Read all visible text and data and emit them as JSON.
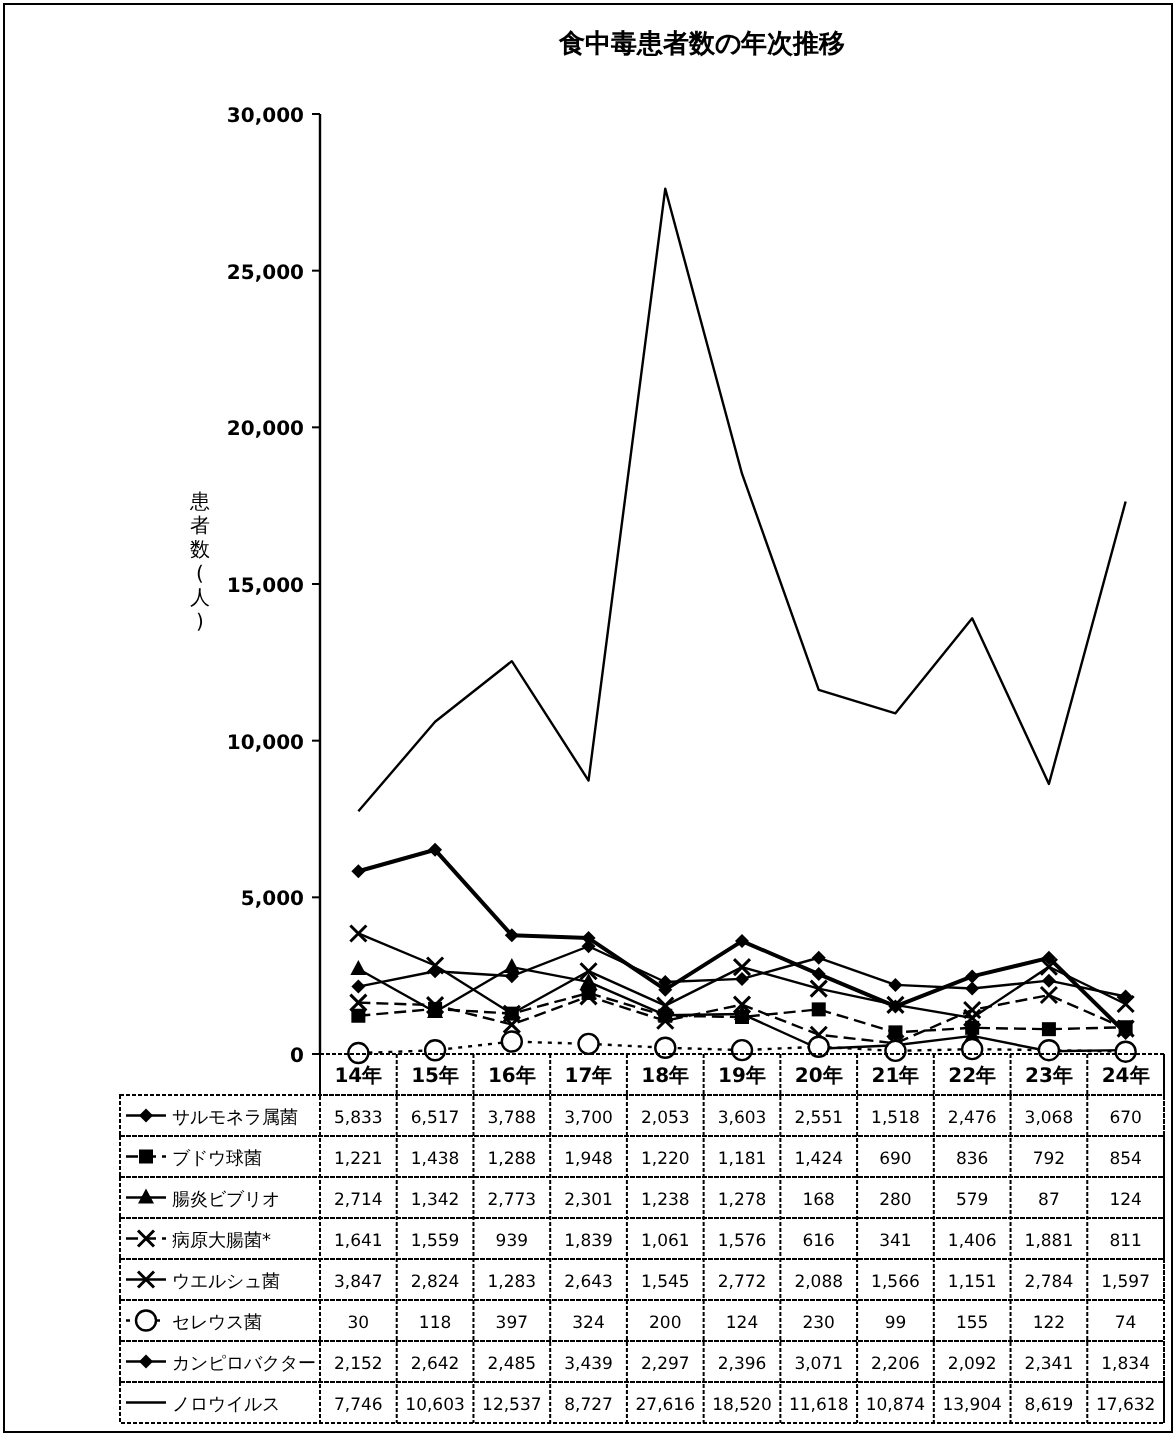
{
  "chart_data": {
    "type": "line",
    "title": "食中毒患者数の年次推移",
    "ylabel": "患者数(人)",
    "categories": [
      "14年",
      "15年",
      "16年",
      "17年",
      "18年",
      "19年",
      "20年",
      "21年",
      "22年",
      "23年",
      "24年"
    ],
    "ylim": [
      0,
      30000
    ],
    "yticks": [
      {
        "value": 0,
        "label": "0"
      },
      {
        "value": 5000,
        "label": "5,000"
      },
      {
        "value": 10000,
        "label": "10,000"
      },
      {
        "value": 15000,
        "label": "15,000"
      },
      {
        "value": 20000,
        "label": "20,000"
      },
      {
        "value": 25000,
        "label": "25,000"
      },
      {
        "value": 30000,
        "label": "30,000"
      }
    ],
    "grid": false,
    "legend": "bottom",
    "series": [
      {
        "name": "サルモネラ属菌",
        "color": "#000000",
        "marker": "diamond",
        "line_style": "solid",
        "values": [
          5833,
          6517,
          3788,
          3700,
          2053,
          3603,
          2551,
          1518,
          2476,
          3068,
          670
        ],
        "value_labels": [
          "5,833",
          "6,517",
          "3,788",
          "3,700",
          "2,053",
          "3,603",
          "2,551",
          "1,518",
          "2,476",
          "3,068",
          "670"
        ]
      },
      {
        "name": "ブドウ球菌",
        "color": "#000000",
        "marker": "square",
        "line_style": "dashed",
        "values": [
          1221,
          1438,
          1288,
          1948,
          1220,
          1181,
          1424,
          690,
          836,
          792,
          854
        ],
        "value_labels": [
          "1,221",
          "1,438",
          "1,288",
          "1,948",
          "1,220",
          "1,181",
          "1,424",
          "690",
          "836",
          "792",
          "854"
        ]
      },
      {
        "name": "腸炎ビブリオ",
        "color": "#000000",
        "marker": "triangle",
        "line_style": "solid",
        "values": [
          2714,
          1342,
          2773,
          2301,
          1238,
          1278,
          168,
          280,
          579,
          87,
          124
        ],
        "value_labels": [
          "2,714",
          "1,342",
          "2,773",
          "2,301",
          "1,238",
          "1,278",
          "168",
          "280",
          "579",
          "87",
          "124"
        ]
      },
      {
        "name": "病原大腸菌*",
        "color": "#000000",
        "marker": "cross",
        "line_style": "dashed",
        "values": [
          1641,
          1559,
          939,
          1839,
          1061,
          1576,
          616,
          341,
          1406,
          1881,
          811
        ],
        "value_labels": [
          "1,641",
          "1,559",
          "939",
          "1,839",
          "1,061",
          "1,576",
          "616",
          "341",
          "1,406",
          "1,881",
          "811"
        ]
      },
      {
        "name": "ウエルシュ菌",
        "color": "#000000",
        "marker": "cross",
        "line_style": "solid",
        "values": [
          3847,
          2824,
          1283,
          2643,
          1545,
          2772,
          2088,
          1566,
          1151,
          2784,
          1597
        ],
        "value_labels": [
          "3,847",
          "2,824",
          "1,283",
          "2,643",
          "1,545",
          "2,772",
          "2,088",
          "1,566",
          "1,151",
          "2,784",
          "1,597"
        ]
      },
      {
        "name": "セレウス菌",
        "color": "#000000",
        "marker": "circle",
        "line_style": "dotted",
        "values": [
          30,
          118,
          397,
          324,
          200,
          124,
          230,
          99,
          155,
          122,
          74
        ],
        "value_labels": [
          "30",
          "118",
          "397",
          "324",
          "200",
          "124",
          "230",
          "99",
          "155",
          "122",
          "74"
        ]
      },
      {
        "name": "カンピロバクター",
        "color": "#000000",
        "marker": "diamond",
        "line_style": "solid",
        "values": [
          2152,
          2642,
          2485,
          3439,
          2297,
          2396,
          3071,
          2206,
          2092,
          2341,
          1834
        ],
        "value_labels": [
          "2,152",
          "2,642",
          "2,485",
          "3,439",
          "2,297",
          "2,396",
          "3,071",
          "2,206",
          "2,092",
          "2,341",
          "1,834"
        ]
      },
      {
        "name": "ノロウイルス",
        "color": "#000000",
        "marker": "none",
        "line_style": "solid",
        "values": [
          7746,
          10603,
          12537,
          8727,
          27616,
          18520,
          11618,
          10874,
          13904,
          8619,
          17632
        ],
        "value_labels": [
          "7,746",
          "10,603",
          "12,537",
          "8,727",
          "27,616",
          "18,520",
          "11,618",
          "10,874",
          "13,904",
          "8,619",
          "17,632"
        ]
      }
    ]
  }
}
